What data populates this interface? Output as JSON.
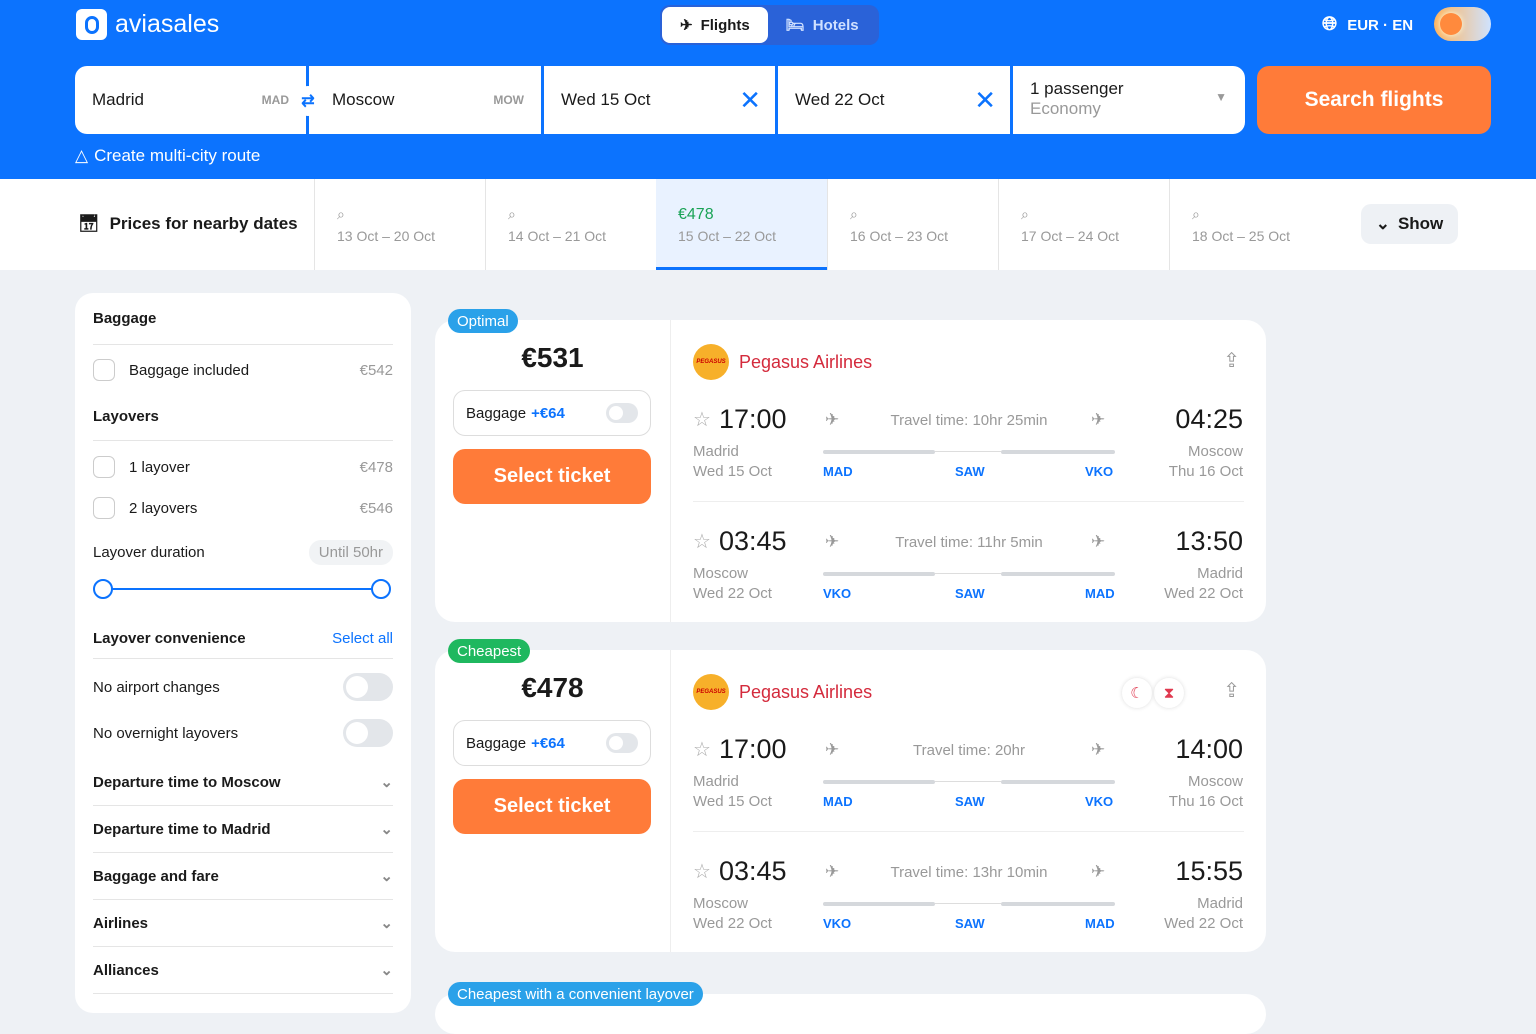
{
  "header": {
    "brand": "aviasales",
    "tabs": [
      {
        "label": "Flights",
        "active": true
      },
      {
        "label": "Hotels",
        "active": false
      }
    ],
    "locale": "EUR · EN",
    "accent": "#0c73fe"
  },
  "search": {
    "origin": "Madrid",
    "origin_code": "MAD",
    "destination": "Moscow",
    "destination_code": "MOW",
    "depart": "Wed 15 Oct",
    "return": "Wed 22 Oct",
    "passengers": "1 passenger",
    "cabin": "Economy",
    "button": "Search flights",
    "multi_city": "Create multi-city route"
  },
  "nearby": {
    "title": "Prices for nearby dates",
    "dates": [
      {
        "range": "13 Oct – 20 Oct",
        "price": ""
      },
      {
        "range": "14 Oct – 21 Oct",
        "price": ""
      },
      {
        "range": "15 Oct – 22 Oct",
        "price": "€478",
        "selected": true
      },
      {
        "range": "16 Oct – 23 Oct",
        "price": ""
      },
      {
        "range": "17 Oct – 24 Oct",
        "price": ""
      },
      {
        "range": "18 Oct – 25 Oct",
        "price": ""
      }
    ],
    "show": "Show"
  },
  "filters": {
    "baggage_title": "Baggage",
    "baggage_included": "Baggage included",
    "baggage_price": "€542",
    "layovers_title": "Layovers",
    "one_layover": "1 layover",
    "one_price": "€478",
    "two_layovers": "2 layovers",
    "two_price": "€546",
    "duration_label": "Layover duration",
    "duration_value": "Until 50hr",
    "convenience_title": "Layover convenience",
    "select_all": "Select all",
    "no_airport_changes": "No airport changes",
    "no_overnight": "No overnight layovers",
    "sections": [
      "Departure time to Moscow",
      "Departure time to Madrid",
      "Baggage and fare",
      "Airlines",
      "Alliances"
    ]
  },
  "tickets": [
    {
      "badge": "Optimal",
      "badge_color": "#2aa1e9",
      "price": "€531",
      "baggage": "Baggage",
      "baggage_add": "+€64",
      "select": "Select ticket",
      "airline": "Pegasus Airlines",
      "icons": [],
      "legs": [
        {
          "dep": "17:00",
          "from": "Madrid",
          "dep_date": "Wed 15 Oct",
          "travel": "Travel time: 10hr 25min",
          "arr": "04:25",
          "to": "Moscow",
          "arr_date": "Thu 16 Oct",
          "airports": [
            "MAD",
            "SAW",
            "VKO"
          ]
        },
        {
          "dep": "03:45",
          "from": "Moscow",
          "dep_date": "Wed 22 Oct",
          "travel": "Travel time: 11hr 5min",
          "arr": "13:50",
          "to": "Madrid",
          "arr_date": "Wed 22 Oct",
          "airports": [
            "VKO",
            "SAW",
            "MAD"
          ]
        }
      ]
    },
    {
      "badge": "Cheapest",
      "badge_color": "#1fb85f",
      "price": "€478",
      "baggage": "Baggage",
      "baggage_add": "+€64",
      "select": "Select ticket",
      "airline": "Pegasus Airlines",
      "icons": [
        "moon-icon",
        "hourglass-icon"
      ],
      "legs": [
        {
          "dep": "17:00",
          "from": "Madrid",
          "dep_date": "Wed 15 Oct",
          "travel": "Travel time: 20hr",
          "arr": "14:00",
          "to": "Moscow",
          "arr_date": "Thu 16 Oct",
          "airports": [
            "MAD",
            "SAW",
            "VKO"
          ]
        },
        {
          "dep": "03:45",
          "from": "Moscow",
          "dep_date": "Wed 22 Oct",
          "travel": "Travel time: 13hr 10min",
          "arr": "15:55",
          "to": "Madrid",
          "arr_date": "Wed 22 Oct",
          "airports": [
            "VKO",
            "SAW",
            "MAD"
          ]
        }
      ]
    }
  ],
  "next_badge": "Cheapest with a convenient layover"
}
